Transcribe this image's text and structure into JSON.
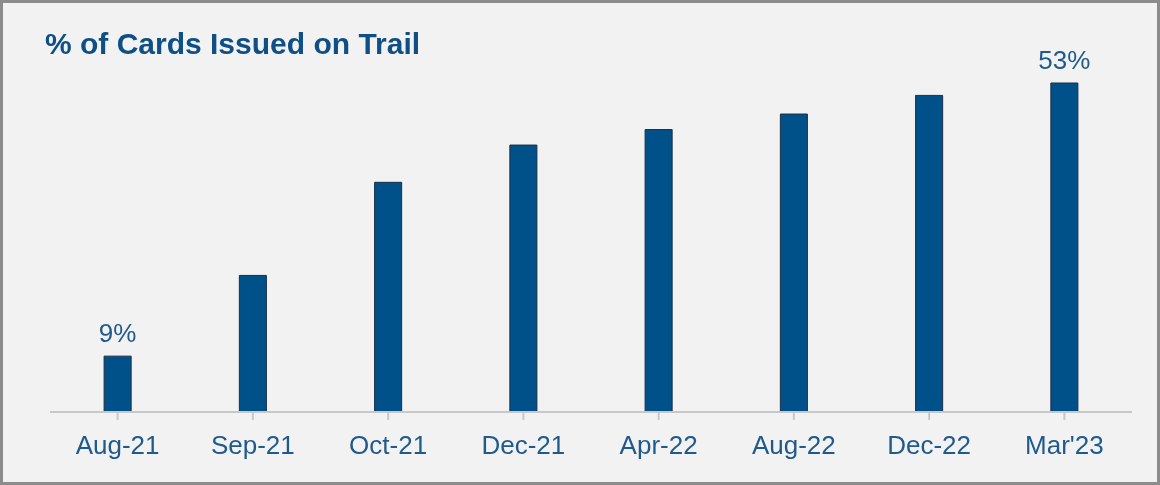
{
  "chart_data": {
    "type": "bar",
    "title": "% of Cards Issued on Trail",
    "categories": [
      "Aug-21",
      "Sep-21",
      "Oct-21",
      "Dec-21",
      "Apr-22",
      "Aug-22",
      "Dec-22",
      "Mar'23"
    ],
    "values": [
      9,
      22,
      37,
      43,
      45.5,
      48,
      51,
      53
    ],
    "color": "#00508a",
    "value_labels": [
      "9%",
      null,
      null,
      null,
      null,
      null,
      null,
      "53%"
    ],
    "grid": false,
    "legend": false
  }
}
